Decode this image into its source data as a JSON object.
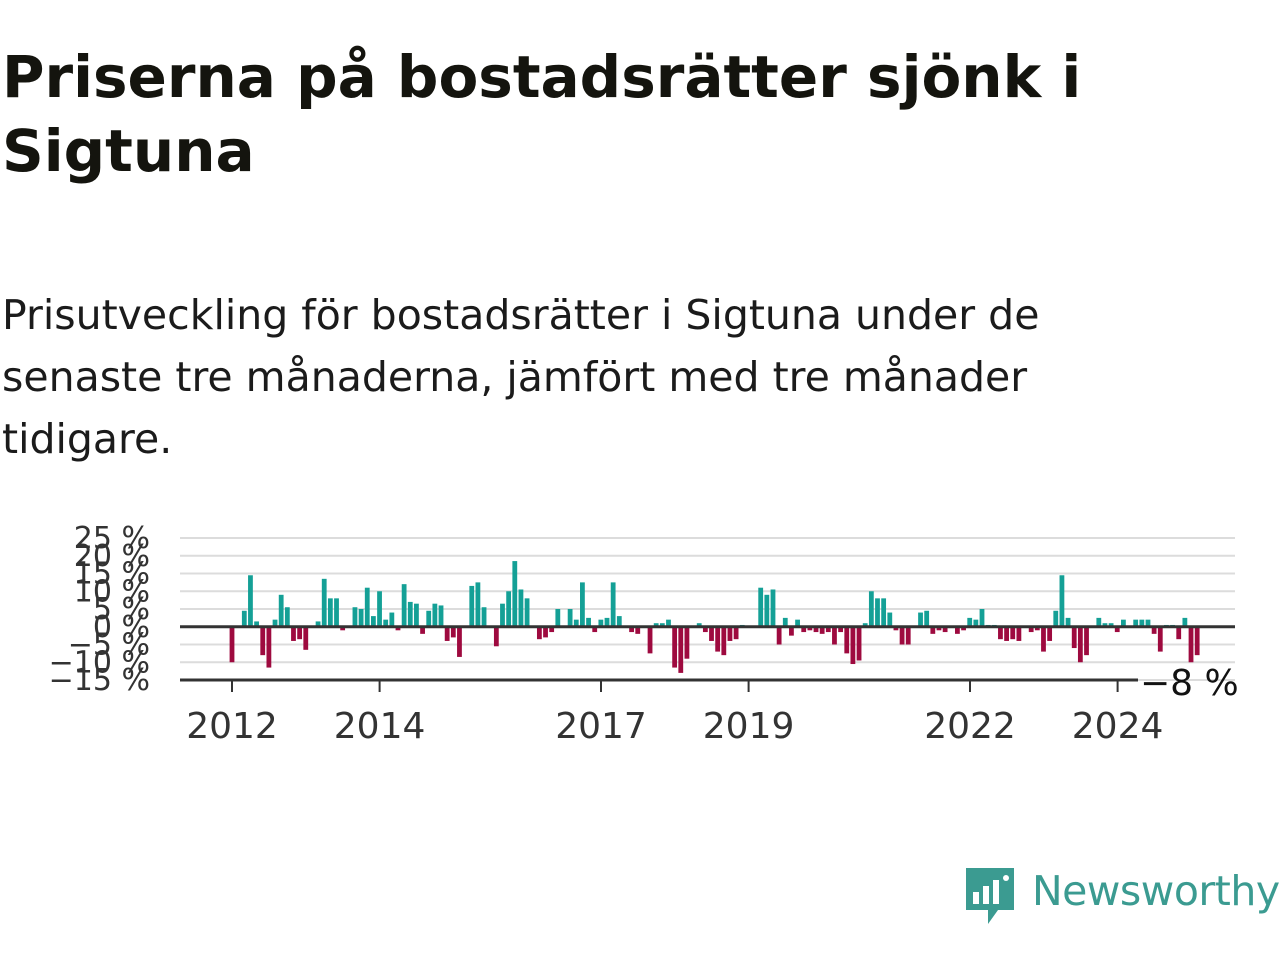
{
  "title": "Priserna på bostadsrätter sjönk i Sigtuna",
  "subtitle": "Prisutveckling för bostadsrätter i Sigtuna under de senaste tre månaderna, jämfört med tre månader tidigare.",
  "logo_text": "Newsworthy",
  "colors": {
    "positive": "#14a096",
    "negative": "#9e0a3f",
    "grid": "#dcdcdc",
    "axis": "#333333",
    "brand": "#3b9b91"
  },
  "chart_data": {
    "type": "bar",
    "ylabel": "",
    "xlabel": "",
    "ylim": [
      -15,
      25
    ],
    "yticks": [
      25,
      20,
      15,
      10,
      5,
      0,
      -5,
      -10,
      -15
    ],
    "ytick_labels": [
      "25 %",
      "20 %",
      "15 %",
      "10 %",
      "5 %",
      "0 %",
      "−5 %",
      "−10 %",
      "−15 %"
    ],
    "xticks": [
      2012,
      2014,
      2017,
      2019,
      2022,
      2024
    ],
    "xtick_labels": [
      "2012",
      "2014",
      "2017",
      "2019",
      "2022",
      "2024"
    ],
    "x_start": 2012,
    "x_step": 0.0833,
    "annotation": "−8 %",
    "values": [
      -10,
      0,
      4.5,
      14.5,
      1.5,
      -8,
      -11.5,
      2,
      9,
      5.5,
      -4,
      -3.5,
      -6.5,
      0,
      1.5,
      13.5,
      8,
      8,
      -1,
      0,
      5.5,
      5,
      11,
      3,
      10,
      2,
      4,
      -1,
      12,
      7,
      6.5,
      -2,
      4.5,
      6.5,
      6,
      -4,
      -3,
      -8.5,
      0,
      11.5,
      12.5,
      5.5,
      0,
      -5.5,
      6.5,
      10,
      18.5,
      10.5,
      8,
      0,
      -3.5,
      -3,
      -1.5,
      5,
      0,
      5,
      2,
      12.5,
      2.5,
      -1.5,
      2,
      2.5,
      12.5,
      3,
      0,
      -1.5,
      -2,
      0,
      -7.5,
      1,
      1,
      2,
      -11.5,
      -13,
      -9,
      0,
      1,
      -1.5,
      -4,
      -7,
      -8,
      -4,
      -3.5,
      0.5,
      0,
      0,
      11,
      9,
      10.5,
      -5,
      2.5,
      -2.5,
      2,
      -1.5,
      -1,
      -1.5,
      -2,
      -1.5,
      -5,
      -1.5,
      -7.5,
      -10.5,
      -9.5,
      1,
      10,
      8,
      8,
      4,
      -1,
      -5,
      -5,
      0,
      4,
      4.5,
      -2,
      -1,
      -1.5,
      0,
      -2,
      -1,
      2.5,
      2,
      5,
      0.5,
      0.5,
      -3.5,
      -4,
      -3.5,
      -4,
      0,
      -1.5,
      -1,
      -7,
      -4,
      4.5,
      14.5,
      2.5,
      -6,
      -10,
      -8,
      0,
      2.5,
      1,
      1,
      -1.5,
      2,
      0,
      2,
      2,
      2,
      -2,
      -7,
      0.5,
      0.5,
      -3.5,
      2.5,
      -10,
      -8
    ]
  }
}
